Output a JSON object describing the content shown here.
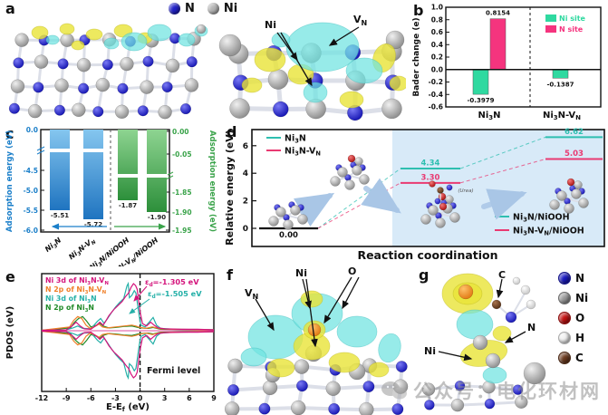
{
  "figure": {
    "panel_labels": {
      "a": "a",
      "b": "b",
      "c": "c",
      "d": "d",
      "e": "e",
      "f": "f",
      "g": "g"
    },
    "watermark_text": "公众号：电化环材网"
  },
  "panel_a": {
    "legend": [
      {
        "label": "N",
        "color": "#2121c6"
      },
      {
        "label": "Ni",
        "color": "#b4b4b4"
      }
    ],
    "labels": {
      "ni": "Ni",
      "vn": "V_{N}"
    }
  },
  "panel_f": {
    "labels": {
      "vn": "V_{N}",
      "ni": "Ni",
      "o": "O"
    }
  },
  "panel_g": {
    "labels": {
      "c": "C",
      "n": "N",
      "ni": "Ni"
    },
    "legend": [
      {
        "label": "N",
        "color": "#1a1ac0"
      },
      {
        "label": "Ni",
        "color": "#9a9a9a"
      },
      {
        "label": "O",
        "color": "#c41212"
      },
      {
        "label": "H",
        "color": "#f2f2f2"
      },
      {
        "label": "C",
        "color": "#6b3a1f"
      }
    ]
  },
  "chart_data": [
    {
      "panel": "b",
      "type": "bar",
      "ylabel": "Bader change (e)",
      "ylim": [
        -0.6,
        1.0
      ],
      "yticks": [
        "1.0",
        "0.8",
        "0.6",
        "0.4",
        "0.2",
        "0.0",
        "-0.2",
        "-0.4",
        "-0.6"
      ],
      "categories": [
        "Ni_{3}N",
        "Ni_{3}N-V_{N}"
      ],
      "legend_position": "top-right",
      "series": [
        {
          "name": "Ni site",
          "color": "#2fd9a0",
          "values": [
            -0.3979,
            -0.1387
          ]
        },
        {
          "name": "N site",
          "color": "#f5347e",
          "values": [
            0.8154,
            null
          ]
        }
      ],
      "value_labels": [
        "-0.3979",
        "0.8154",
        "-0.1387"
      ]
    },
    {
      "panel": "c",
      "type": "bar",
      "broken_axis": true,
      "left_axis": {
        "label": "Adsorption energy (eV)",
        "color": "#1b7fc9",
        "ticks": [
          "0.0",
          "-4.5",
          "-5.0",
          "-5.5",
          "-6.0"
        ]
      },
      "right_axis": {
        "label": "Adsorption energy (eV)",
        "color": "#3aa34a",
        "ticks": [
          "0.00",
          "-0.05",
          "-1.85",
          "-1.90",
          "-1.95"
        ]
      },
      "categories": [
        "Ni_{3}N",
        "Ni_{3}N-V_{N}",
        "Ni_{3}N/NiOOH",
        "Ni_{3}N-V_{N}/NiOOH"
      ],
      "values": [
        -5.51,
        -5.72,
        -1.87,
        -1.9
      ],
      "value_labels": [
        "-5.51",
        "-5.72",
        "-1.87",
        "-1.90"
      ],
      "bar_axis": [
        "left",
        "left",
        "right",
        "right"
      ]
    },
    {
      "panel": "d",
      "type": "energy-profile",
      "xlabel": "Reaction coordination",
      "ylabel": "Relative energy (eV)",
      "yticks": [
        0,
        2,
        4,
        6
      ],
      "ylim": [
        -0.8,
        7.2
      ],
      "legend_top": [
        {
          "label": "Ni_{3}N",
          "color": "#2ebfb0"
        },
        {
          "label": "Ni_{3}N-V_{N}",
          "color": "#e93a72"
        }
      ],
      "legend_bottom": [
        {
          "label": "Ni_{3}N/NiOOH",
          "color": "#2ebfb0"
        },
        {
          "label": "Ni_{3}N-V_{N}/NiOOH",
          "color": "#e93a72"
        }
      ],
      "levels": [
        {
          "stage": 0,
          "series": "common",
          "value": 0.0,
          "label": "0.00",
          "color": "#111111"
        },
        {
          "stage": 1,
          "series": "Ni3N",
          "value": 4.34,
          "label": "4.34",
          "color": "#2ebfb0"
        },
        {
          "stage": 1,
          "series": "Ni3N-VN",
          "value": 3.3,
          "label": "3.30",
          "color": "#e93a72"
        },
        {
          "stage": 2,
          "series": "Ni3N",
          "value": 6.62,
          "label": "6.62",
          "color": "#2ebfb0"
        },
        {
          "stage": 2,
          "series": "Ni3N-VN",
          "value": 5.03,
          "label": "5.03",
          "color": "#e93a72"
        }
      ],
      "annotation": "(Urea)"
    },
    {
      "panel": "e",
      "type": "line",
      "xlabel": "E-E_{f} (eV)",
      "ylabel": "PDOS (eV)",
      "xticks": [
        -12,
        -9,
        -6,
        -3,
        0,
        3,
        6,
        9
      ],
      "xlim": [
        -12,
        9
      ],
      "mirrored_spin": true,
      "fermi_line_x": 0,
      "annotations": [
        {
          "text": "ε_{d}=-1.305 eV",
          "color": "#d4147c"
        },
        {
          "text": "ε_{d}=-1.505 eV",
          "color": "#25b0a8"
        },
        {
          "text": "Fermi level",
          "color": "#111111"
        }
      ],
      "series": [
        {
          "name": "Ni 3d of Ni_{3}N-V_{N}",
          "color": "#d4147c",
          "points": [
            [
              -12,
              0.01
            ],
            [
              -9,
              0.02
            ],
            [
              -8.3,
              0.1
            ],
            [
              -7.8,
              0.18
            ],
            [
              -7.3,
              0.1
            ],
            [
              -6.8,
              0.04
            ],
            [
              -6,
              0.03
            ],
            [
              -5.3,
              0.12
            ],
            [
              -4.9,
              0.18
            ],
            [
              -4.5,
              0.12
            ],
            [
              -4.2,
              0.2
            ],
            [
              -3.8,
              0.32
            ],
            [
              -3.2,
              0.45
            ],
            [
              -2.6,
              0.55
            ],
            [
              -2.2,
              0.62
            ],
            [
              -1.8,
              0.72
            ],
            [
              -1.4,
              0.8
            ],
            [
              -1.1,
              0.92
            ],
            [
              -0.8,
              1.0
            ],
            [
              -0.55,
              0.96
            ],
            [
              -0.35,
              0.88
            ],
            [
              -0.15,
              0.6
            ],
            [
              0,
              0.4
            ],
            [
              0.3,
              0.15
            ],
            [
              0.8,
              0.1
            ],
            [
              1.3,
              0.18
            ],
            [
              1.7,
              0.12
            ],
            [
              2.2,
              0.06
            ],
            [
              3,
              0.04
            ],
            [
              5,
              0.03
            ],
            [
              7,
              0.03
            ],
            [
              9,
              0.02
            ]
          ]
        },
        {
          "name": "N 2p of Ni_{3}N-V_{N}",
          "color": "#f07f28",
          "points": [
            [
              -12,
              0.01
            ],
            [
              -8.6,
              0.08
            ],
            [
              -8.1,
              0.22
            ],
            [
              -7.6,
              0.3
            ],
            [
              -7.1,
              0.26
            ],
            [
              -6.6,
              0.12
            ],
            [
              -6.1,
              0.05
            ],
            [
              -5.4,
              0.1
            ],
            [
              -5,
              0.14
            ],
            [
              -4.6,
              0.08
            ],
            [
              -4,
              0.06
            ],
            [
              -3,
              0.08
            ],
            [
              -2,
              0.1
            ],
            [
              -1,
              0.12
            ],
            [
              -0.5,
              0.1
            ],
            [
              0,
              0.07
            ],
            [
              0.7,
              0.05
            ],
            [
              1.5,
              0.08
            ],
            [
              2.5,
              0.04
            ],
            [
              4,
              0.03
            ],
            [
              9,
              0.02
            ]
          ]
        },
        {
          "name": "Ni 3d of Ni_{3}N",
          "color": "#25b0a8",
          "points": [
            [
              -12,
              0.01
            ],
            [
              -9,
              0.02
            ],
            [
              -8.2,
              0.06
            ],
            [
              -7.6,
              0.1
            ],
            [
              -7,
              0.05
            ],
            [
              -6,
              0.04
            ],
            [
              -5.2,
              0.2
            ],
            [
              -4.8,
              0.26
            ],
            [
              -4.4,
              0.16
            ],
            [
              -4,
              0.25
            ],
            [
              -3.5,
              0.38
            ],
            [
              -3,
              0.5
            ],
            [
              -2.5,
              0.6
            ],
            [
              -2,
              0.68
            ],
            [
              -1.6,
              0.95
            ],
            [
              -1.45,
              1.0
            ],
            [
              -1.3,
              0.7
            ],
            [
              -1,
              0.75
            ],
            [
              -0.7,
              0.85
            ],
            [
              -0.5,
              0.8
            ],
            [
              -0.3,
              0.55
            ],
            [
              -0.1,
              0.3
            ],
            [
              0.1,
              0.12
            ],
            [
              0.6,
              0.08
            ],
            [
              1.2,
              0.2
            ],
            [
              1.6,
              0.28
            ],
            [
              2,
              0.12
            ],
            [
              2.5,
              0.05
            ],
            [
              4,
              0.03
            ],
            [
              9,
              0.02
            ]
          ]
        },
        {
          "name": "N 2p of Ni_{3}N",
          "color": "#208a28",
          "points": [
            [
              -12,
              0.01
            ],
            [
              -8.5,
              0.06
            ],
            [
              -8,
              0.18
            ],
            [
              -7.5,
              0.26
            ],
            [
              -7,
              0.3
            ],
            [
              -6.5,
              0.2
            ],
            [
              -6,
              0.08
            ],
            [
              -5.3,
              0.12
            ],
            [
              -4.9,
              0.16
            ],
            [
              -4.5,
              0.1
            ],
            [
              -3.8,
              0.06
            ],
            [
              -3,
              0.07
            ],
            [
              -2,
              0.09
            ],
            [
              -1,
              0.1
            ],
            [
              0,
              0.06
            ],
            [
              1,
              0.05
            ],
            [
              1.6,
              0.07
            ],
            [
              2.5,
              0.03
            ],
            [
              9,
              0.02
            ]
          ]
        }
      ]
    }
  ]
}
